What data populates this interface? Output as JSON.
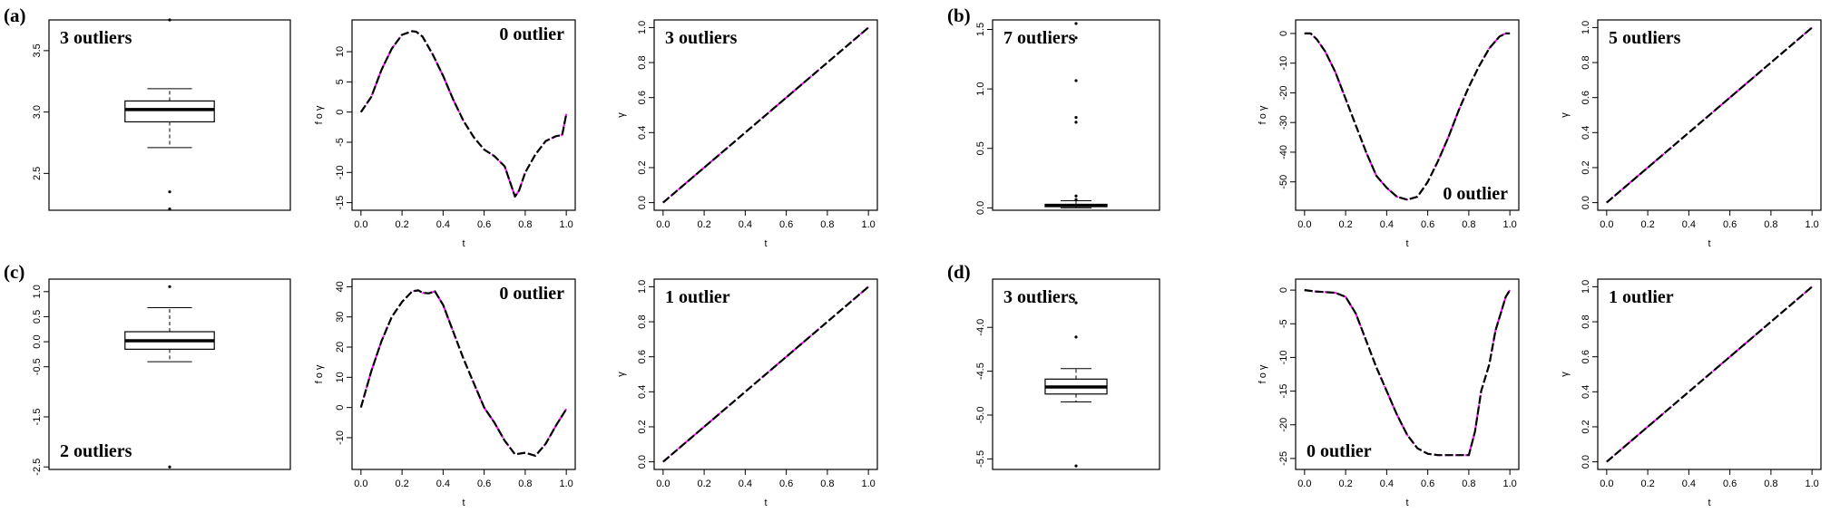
{
  "panel_labels": [
    "(a)",
    "(b)",
    "(c)",
    "(d)"
  ],
  "chart_data": [
    {
      "panel": "(a)",
      "type": "boxplot",
      "ylim": [
        2.2,
        3.75
      ],
      "yticks": [
        "2.5",
        "3.0",
        "3.5"
      ],
      "ytick_values": [
        2.5,
        3.0,
        3.5
      ],
      "box": {
        "lower_whisker": 2.71,
        "q1": 2.92,
        "median": 3.02,
        "q3": 3.09,
        "upper_whisker": 3.19
      },
      "outliers": [
        3.75,
        2.35,
        2.21
      ],
      "annotation": "3 outliers",
      "annotation_pos": "top-left"
    },
    {
      "panel": "(a)",
      "type": "line",
      "xlabel": "t",
      "ylabel": "f o γ",
      "xlim": [
        0,
        1
      ],
      "ylim": [
        -15,
        14
      ],
      "xticks": [
        "0.0",
        "0.2",
        "0.4",
        "0.6",
        "0.8",
        "1.0"
      ],
      "xtick_values": [
        0,
        0.2,
        0.4,
        0.6,
        0.8,
        1.0
      ],
      "yticks": [
        "-15",
        "-10",
        "-5",
        "0",
        "5",
        "10"
      ],
      "ytick_values": [
        -15,
        -10,
        -5,
        0,
        5,
        10
      ],
      "series": [
        {
          "x": [
            0,
            0.05,
            0.1,
            0.15,
            0.2,
            0.25,
            0.27,
            0.3,
            0.35,
            0.4,
            0.45,
            0.5,
            0.55,
            0.6,
            0.65,
            0.7,
            0.73,
            0.75,
            0.77,
            0.8,
            0.85,
            0.9,
            0.95,
            0.98,
            1.0
          ],
          "y": [
            0,
            2.5,
            7,
            10.5,
            12.8,
            13.4,
            13.3,
            12.5,
            9.5,
            6,
            2,
            -1.5,
            -4.2,
            -6.2,
            -7.3,
            -9,
            -12,
            -14,
            -13,
            -10,
            -7,
            -4.8,
            -4,
            -3.8,
            -0.3
          ]
        }
      ],
      "annotation": "0 outlier",
      "annotation_pos": "top-right"
    },
    {
      "panel": "(a)",
      "type": "line",
      "xlabel": "t",
      "ylabel": "γ",
      "xlim": [
        0,
        1
      ],
      "ylim": [
        0,
        1
      ],
      "xticks": [
        "0.0",
        "0.2",
        "0.4",
        "0.6",
        "0.8",
        "1.0"
      ],
      "xtick_values": [
        0,
        0.2,
        0.4,
        0.6,
        0.8,
        1.0
      ],
      "yticks": [
        "0.0",
        "0.2",
        "0.4",
        "0.6",
        "0.8",
        "1.0"
      ],
      "ytick_values": [
        0,
        0.2,
        0.4,
        0.6,
        0.8,
        1.0
      ],
      "series": [
        {
          "x": [
            0,
            1
          ],
          "y": [
            0,
            1
          ]
        }
      ],
      "annotation": "3 outliers",
      "annotation_pos": "top-left"
    },
    {
      "panel": "(b)",
      "type": "boxplot",
      "ylim": [
        -0.02,
        1.58
      ],
      "yticks": [
        "0.0",
        "0.5",
        "1.0",
        "1.5"
      ],
      "ytick_values": [
        0,
        0.5,
        1.0,
        1.5
      ],
      "box": {
        "lower_whisker": 0.0,
        "q1": 0.01,
        "median": 0.02,
        "q3": 0.03,
        "upper_whisker": 0.06
      },
      "outliers": [
        1.55,
        1.43,
        1.07,
        0.76,
        0.72,
        0.1,
        0.07
      ],
      "annotation": "7 outliers",
      "annotation_pos": "top-left"
    },
    {
      "panel": "(b)",
      "type": "line",
      "xlabel": "t",
      "ylabel": "f o γ",
      "xlim": [
        0,
        1
      ],
      "ylim": [
        -57,
        2
      ],
      "xticks": [
        "0.0",
        "0.2",
        "0.4",
        "0.6",
        "0.8",
        "1.0"
      ],
      "xtick_values": [
        0,
        0.2,
        0.4,
        0.6,
        0.8,
        1.0
      ],
      "yticks": [
        "-50",
        "-40",
        "-30",
        "-20",
        "-10",
        "0"
      ],
      "ytick_values": [
        -50,
        -40,
        -30,
        -20,
        -10,
        0
      ],
      "series": [
        {
          "x": [
            0,
            0.03,
            0.06,
            0.1,
            0.15,
            0.2,
            0.25,
            0.3,
            0.35,
            0.4,
            0.45,
            0.5,
            0.55,
            0.6,
            0.65,
            0.7,
            0.75,
            0.8,
            0.85,
            0.9,
            0.95,
            0.98,
            1.0
          ],
          "y": [
            0,
            0,
            -2,
            -6,
            -13,
            -22,
            -31,
            -40,
            -48,
            -52,
            -55,
            -56,
            -55,
            -50,
            -43,
            -35,
            -26,
            -18,
            -11,
            -5,
            -1,
            0,
            0
          ]
        }
      ],
      "annotation": "0 outlier",
      "annotation_pos": "bottom-right"
    },
    {
      "panel": "(b)",
      "type": "line",
      "xlabel": "t",
      "ylabel": "γ",
      "xlim": [
        0,
        1
      ],
      "ylim": [
        0,
        1
      ],
      "xticks": [
        "0.0",
        "0.2",
        "0.4",
        "0.6",
        "0.8",
        "1.0"
      ],
      "xtick_values": [
        0,
        0.2,
        0.4,
        0.6,
        0.8,
        1.0
      ],
      "yticks": [
        "0.0",
        "0.2",
        "0.4",
        "0.6",
        "0.8",
        "1.0"
      ],
      "ytick_values": [
        0,
        0.2,
        0.4,
        0.6,
        0.8,
        1.0
      ],
      "series": [
        {
          "x": [
            0,
            1
          ],
          "y": [
            0,
            1
          ]
        }
      ],
      "annotation": "5 outliers",
      "annotation_pos": "top-left"
    },
    {
      "panel": "(c)",
      "type": "boxplot",
      "ylim": [
        -2.55,
        1.25
      ],
      "yticks": [
        "-2.5",
        "-1.5",
        "-0.5",
        "0.0",
        "0.5",
        "1.0"
      ],
      "ytick_values": [
        -2.5,
        -1.5,
        -0.5,
        0.0,
        0.5,
        1.0
      ],
      "box": {
        "lower_whisker": -0.4,
        "q1": -0.15,
        "median": 0.02,
        "q3": 0.2,
        "upper_whisker": 0.68
      },
      "outliers": [
        1.1,
        -2.5
      ],
      "annotation": "2 outliers",
      "annotation_pos": "bottom-left"
    },
    {
      "panel": "(c)",
      "type": "line",
      "xlabel": "t",
      "ylabel": "f o γ",
      "xlim": [
        0,
        1
      ],
      "ylim": [
        -18,
        40
      ],
      "xticks": [
        "0.0",
        "0.2",
        "0.4",
        "0.6",
        "0.8",
        "1.0"
      ],
      "xtick_values": [
        0,
        0.2,
        0.4,
        0.6,
        0.8,
        1.0
      ],
      "yticks": [
        "-10",
        "0",
        "10",
        "20",
        "30",
        "40"
      ],
      "ytick_values": [
        -10,
        0,
        10,
        20,
        30,
        40
      ],
      "series": [
        {
          "x": [
            0,
            0.05,
            0.1,
            0.15,
            0.2,
            0.25,
            0.28,
            0.3,
            0.33,
            0.36,
            0.4,
            0.45,
            0.5,
            0.55,
            0.6,
            0.65,
            0.7,
            0.75,
            0.8,
            0.85,
            0.9,
            0.95,
            1.0
          ],
          "y": [
            0,
            12,
            22,
            30,
            35,
            38.5,
            38.8,
            38,
            37.8,
            38.5,
            34,
            25,
            16,
            8,
            0,
            -5,
            -11,
            -15.5,
            -15,
            -16,
            -12,
            -6,
            -0.5
          ]
        }
      ],
      "annotation": "0 outlier",
      "annotation_pos": "top-right"
    },
    {
      "panel": "(c)",
      "type": "line",
      "xlabel": "t",
      "ylabel": "γ",
      "xlim": [
        0,
        1
      ],
      "ylim": [
        0,
        1
      ],
      "xticks": [
        "0.0",
        "0.2",
        "0.4",
        "0.6",
        "0.8",
        "1.0"
      ],
      "xtick_values": [
        0,
        0.2,
        0.4,
        0.6,
        0.8,
        1.0
      ],
      "yticks": [
        "0.0",
        "0.2",
        "0.4",
        "0.6",
        "0.8",
        "1.0"
      ],
      "ytick_values": [
        0,
        0.2,
        0.4,
        0.6,
        0.8,
        1.0
      ],
      "series": [
        {
          "x": [
            0,
            1
          ],
          "y": [
            0,
            1
          ]
        }
      ],
      "annotation": "1 outlier",
      "annotation_pos": "top-left"
    },
    {
      "panel": "(d)",
      "type": "boxplot",
      "ylim": [
        -5.62,
        -3.45
      ],
      "yticks": [
        "-5.5",
        "-5.0",
        "-4.5",
        "-4.0"
      ],
      "ytick_values": [
        -5.5,
        -5.0,
        -4.5,
        -4.0
      ],
      "box": {
        "lower_whisker": -4.85,
        "q1": -4.76,
        "median": -4.68,
        "q3": -4.59,
        "upper_whisker": -4.47
      },
      "outliers": [
        -3.72,
        -4.11,
        -5.58
      ],
      "annotation": "3 outliers",
      "annotation_pos": "top-left"
    },
    {
      "panel": "(d)",
      "type": "line",
      "xlabel": "t",
      "ylabel": "f o γ",
      "xlim": [
        0,
        1
      ],
      "ylim": [
        -25.5,
        0.5
      ],
      "xticks": [
        "0.0",
        "0.2",
        "0.4",
        "0.6",
        "0.8",
        "1.0"
      ],
      "xtick_values": [
        0,
        0.2,
        0.4,
        0.6,
        0.8,
        1.0
      ],
      "yticks": [
        "-25",
        "-20",
        "-15",
        "-10",
        "-5",
        "0"
      ],
      "ytick_values": [
        -25,
        -20,
        -15,
        -10,
        -5,
        0
      ],
      "series": [
        {
          "x": [
            0,
            0.05,
            0.1,
            0.15,
            0.2,
            0.25,
            0.3,
            0.35,
            0.4,
            0.45,
            0.5,
            0.55,
            0.6,
            0.65,
            0.7,
            0.75,
            0.8,
            0.83,
            0.86,
            0.9,
            0.93,
            0.96,
            0.98,
            1.0
          ],
          "y": [
            0,
            -0.2,
            -0.3,
            -0.4,
            -1,
            -3.5,
            -7.5,
            -11.5,
            -15,
            -18.5,
            -21.5,
            -23.5,
            -24.3,
            -24.5,
            -24.5,
            -24.5,
            -24.5,
            -21,
            -15,
            -11,
            -6,
            -3,
            -1,
            0
          ]
        }
      ],
      "annotation": "0 outlier",
      "annotation_pos": "bottom-left"
    },
    {
      "panel": "(d)",
      "type": "line",
      "xlabel": "t",
      "ylabel": "γ",
      "xlim": [
        0,
        1
      ],
      "ylim": [
        0,
        1
      ],
      "xticks": [
        "0.0",
        "0.2",
        "0.4",
        "0.6",
        "0.8",
        "1.0"
      ],
      "xtick_values": [
        0,
        0.2,
        0.4,
        0.6,
        0.8,
        1.0
      ],
      "yticks": [
        "0.0",
        "0.2",
        "0.4",
        "0.6",
        "0.8",
        "1.0"
      ],
      "ytick_values": [
        0,
        0.2,
        0.4,
        0.6,
        0.8,
        1.0
      ],
      "series": [
        {
          "x": [
            0,
            1
          ],
          "y": [
            0,
            1
          ]
        }
      ],
      "annotation": "1 outlier",
      "annotation_pos": "top-left"
    }
  ],
  "colors": {
    "curve": "#000000",
    "overlay_1": "#ff00ff",
    "overlay_2": "#0000ff",
    "axis": "#000000"
  }
}
